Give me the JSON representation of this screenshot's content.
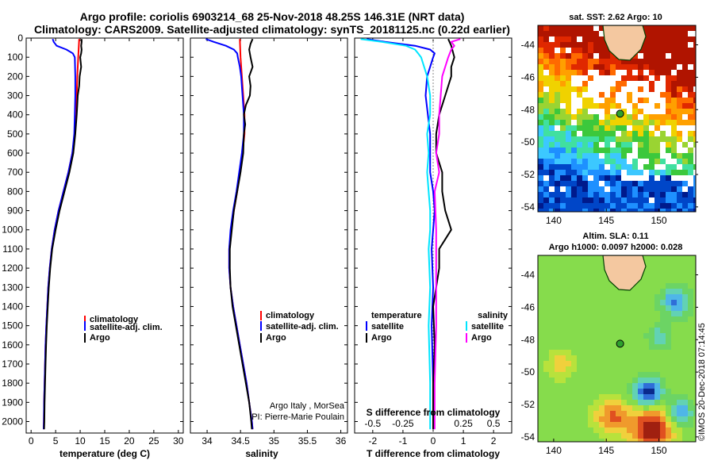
{
  "title": {
    "line1": "Argo profile: coriolis 6903214_68 25-Nov-2018 48.25S 146.31E (NRT data)",
    "line2": "Climatology: CARS2009. Satellite-adjusted climatology: synTS_20181125.nc (0.22d earlier)"
  },
  "colors": {
    "argo": "#000000",
    "climatology": "#ff0000",
    "satellite": "#0000ff",
    "temperature_sat": "#0000ff",
    "salinity_sat": "#00e5ff",
    "salinity_argo": "#ff00ff"
  },
  "chart_data": [
    {
      "id": "temperature",
      "type": "line",
      "xlabel": "temperature (deg C)",
      "ylabel": "",
      "xlim": [
        -1,
        31
      ],
      "ylim": [
        2060,
        0
      ],
      "y_reversed": true,
      "xticks": [
        0,
        5,
        10,
        15,
        20,
        25,
        30
      ],
      "yticks": [
        0,
        100,
        200,
        300,
        400,
        500,
        600,
        700,
        800,
        900,
        1000,
        1100,
        1200,
        1300,
        1400,
        1500,
        1600,
        1700,
        1800,
        1900,
        2000
      ],
      "legend": [
        "climatology",
        "satellite-adj. clim.",
        "Argo"
      ],
      "series": [
        {
          "name": "climatology",
          "color": "red",
          "y": [
            5,
            100,
            200,
            300,
            400,
            500,
            600,
            700,
            800,
            900,
            1000,
            1100,
            1200,
            1300,
            1400,
            1500,
            1600,
            1700,
            1800,
            1900,
            2000,
            2040
          ],
          "x": [
            9.8,
            9.6,
            9.4,
            9.3,
            9.2,
            8.9,
            8.4,
            7.6,
            6.6,
            5.6,
            4.8,
            4.2,
            3.8,
            3.5,
            3.3,
            3.1,
            2.95,
            2.85,
            2.75,
            2.65,
            2.6,
            2.55
          ]
        },
        {
          "name": "satellite-adj. clim.",
          "color": "blue",
          "y": [
            5,
            20,
            40,
            60,
            80,
            100,
            200,
            300,
            400,
            500,
            600,
            700,
            800,
            900,
            1000,
            1100,
            1200,
            1300,
            1400,
            1500,
            1600,
            1700,
            1800,
            1900,
            2000,
            2040
          ],
          "x": [
            4.4,
            4.6,
            5.2,
            7.2,
            8.5,
            8.9,
            9.0,
            9.0,
            8.9,
            8.8,
            8.4,
            7.6,
            6.6,
            5.6,
            4.8,
            4.2,
            3.8,
            3.5,
            3.3,
            3.1,
            2.95,
            2.85,
            2.75,
            2.65,
            2.6,
            2.55
          ]
        },
        {
          "name": "Argo",
          "color": "black",
          "y": [
            5,
            20,
            40,
            60,
            80,
            100,
            150,
            200,
            250,
            300,
            350,
            400,
            500,
            600,
            700,
            800,
            900,
            1000,
            1100,
            1200,
            1300,
            1400,
            1500,
            1600,
            1700,
            1800,
            1900,
            2000,
            2040
          ],
          "x": [
            10.3,
            10.3,
            10.2,
            10.3,
            10.2,
            10.0,
            10.2,
            9.9,
            9.8,
            9.5,
            9.4,
            9.3,
            9.0,
            8.6,
            7.8,
            6.8,
            5.8,
            5.0,
            4.3,
            3.9,
            3.6,
            3.4,
            3.2,
            3.05,
            2.95,
            2.85,
            2.75,
            2.7,
            2.65
          ]
        }
      ]
    },
    {
      "id": "salinity",
      "type": "line",
      "xlabel": "salinity",
      "ylabel": "",
      "xlim": [
        33.75,
        36.1
      ],
      "ylim": [
        2060,
        0
      ],
      "y_reversed": true,
      "xticks": [
        34,
        34.5,
        35,
        35.5,
        36
      ],
      "xticklabels": [
        "34",
        "34.5",
        "35",
        "35.5",
        "36"
      ],
      "legend": [
        "climatology",
        "satellite-adj. clim.",
        "Argo"
      ],
      "notes": [
        "Argo Italy , MorSea",
        "PI: Pierre-Marie Poulain"
      ],
      "series": [
        {
          "name": "climatology",
          "color": "red",
          "y": [
            5,
            100,
            200,
            300,
            400,
            500,
            600,
            700,
            800,
            900,
            1000,
            1100,
            1200,
            1300,
            1400,
            1500,
            1600,
            1700,
            1800,
            1900,
            2000,
            2040
          ],
          "x": [
            34.49,
            34.5,
            34.52,
            34.54,
            34.56,
            34.56,
            34.53,
            34.49,
            34.45,
            34.4,
            34.36,
            34.33,
            34.33,
            34.35,
            34.39,
            34.44,
            34.49,
            34.54,
            34.59,
            34.63,
            34.67,
            34.68
          ]
        },
        {
          "name": "satellite-adj. clim.",
          "color": "blue",
          "y": [
            5,
            20,
            40,
            60,
            80,
            100,
            150,
            200,
            300,
            400,
            500,
            600,
            700,
            800,
            900,
            1000,
            1100,
            1200,
            1300,
            1400,
            1500,
            1600,
            1700,
            1800,
            1900,
            2000,
            2040
          ],
          "x": [
            33.98,
            34.1,
            34.28,
            34.4,
            34.45,
            34.46,
            34.49,
            34.51,
            34.53,
            34.55,
            34.55,
            34.52,
            34.48,
            34.44,
            34.39,
            34.35,
            34.33,
            34.33,
            34.35,
            34.39,
            34.44,
            34.49,
            34.54,
            34.59,
            34.63,
            34.67,
            34.68
          ]
        },
        {
          "name": "Argo",
          "color": "black",
          "y": [
            5,
            30,
            60,
            100,
            150,
            200,
            250,
            300,
            350,
            400,
            450,
            500,
            600,
            700,
            800,
            900,
            1000,
            1100,
            1200,
            1300,
            1400,
            1500,
            1600,
            1700,
            1800,
            1900,
            2000,
            2040
          ],
          "x": [
            34.68,
            34.65,
            34.63,
            34.65,
            34.68,
            34.63,
            34.65,
            34.64,
            34.58,
            34.55,
            34.57,
            34.55,
            34.54,
            34.5,
            34.45,
            34.4,
            34.37,
            34.34,
            34.34,
            34.35,
            34.38,
            34.43,
            34.48,
            34.53,
            34.58,
            34.63,
            34.66,
            34.67
          ]
        }
      ]
    },
    {
      "id": "difference",
      "type": "line",
      "xlabel": "T difference from climatology",
      "top_xlabel": "S difference from climatology",
      "xlim": [
        -2.6,
        2.6
      ],
      "ylim": [
        2060,
        0
      ],
      "y_reversed": true,
      "xticks": [
        -2,
        -1,
        0,
        1,
        2
      ],
      "top_xticks": [
        -2.0,
        -1.0,
        1.0,
        2.0
      ],
      "top_xticklabels": [
        "-0.5",
        "-0.25",
        "0.25",
        "0.5"
      ],
      "legend_temperature": {
        "heading": "temperature",
        "items": [
          "satellite",
          "Argo"
        ]
      },
      "legend_salinity": {
        "heading": "salinity",
        "items": [
          "satellite",
          "Argo"
        ]
      },
      "series": [
        {
          "name": "temperature satellite",
          "color": "blue",
          "y": [
            5,
            20,
            40,
            60,
            80,
            100,
            200,
            300,
            500,
            700,
            800,
            900,
            1000,
            1100,
            1300,
            1500,
            1800,
            2040
          ],
          "x": [
            -2.2,
            -1.6,
            -0.6,
            -0.1,
            0.05,
            0.0,
            -0.2,
            -0.25,
            -0.1,
            -0.1,
            0.0,
            0.05,
            0.0,
            -0.05,
            0.0,
            -0.05,
            0.0,
            0.0
          ]
        },
        {
          "name": "temperature Argo",
          "color": "black",
          "y": [
            5,
            40,
            100,
            150,
            200,
            300,
            400,
            500,
            600,
            700,
            800,
            900,
            1000,
            1050,
            1100,
            1200,
            1400,
            1600,
            1800,
            2040
          ],
          "x": [
            0.5,
            0.6,
            0.7,
            0.6,
            0.6,
            0.4,
            0.2,
            0.1,
            0.1,
            0.3,
            0.3,
            0.4,
            0.6,
            0.4,
            0.2,
            0.2,
            0.0,
            0.05,
            0.0,
            0.0
          ]
        },
        {
          "name": "salinity satellite",
          "color": "cyan",
          "y": [
            5,
            20,
            40,
            60,
            80,
            100,
            200,
            300,
            400,
            500,
            600,
            700,
            800,
            900,
            1000,
            1100,
            1300,
            1500,
            1800,
            2040
          ],
          "x": [
            -2.4,
            -1.7,
            -0.9,
            -0.6,
            -0.5,
            -0.4,
            -0.2,
            -0.1,
            -0.1,
            -0.2,
            -0.15,
            -0.2,
            -0.15,
            -0.1,
            -0.1,
            -0.15,
            -0.1,
            -0.15,
            -0.1,
            -0.1
          ]
        },
        {
          "name": "salinity Argo",
          "color": "magenta",
          "y": [
            5,
            20,
            40,
            60,
            100,
            200,
            400,
            500,
            600,
            700,
            800,
            1000,
            1200,
            1500,
            1800,
            2040
          ],
          "x": [
            0.9,
            0.6,
            0.7,
            0.6,
            0.5,
            0.3,
            0.2,
            0.2,
            0.1,
            0.2,
            0.05,
            0.1,
            0.1,
            0.1,
            0.05,
            0.05
          ]
        }
      ]
    }
  ],
  "maps": [
    {
      "id": "sst-map",
      "title": "sat. SST: 2.62 Argo: 10",
      "xticks": [
        140,
        145,
        150
      ],
      "yticks": [
        -44,
        -46,
        -48,
        -50,
        -52,
        -54
      ],
      "xlim": [
        138.5,
        153.5
      ],
      "ylim": [
        -54.3,
        -42.8
      ]
    },
    {
      "id": "sla-map",
      "title_line1": "Altim. SLA: 0.11",
      "title_line2": "Argo h1000: 0.0097 h2000: 0.028",
      "xticks": [
        140,
        145,
        150
      ],
      "yticks": [
        -44,
        -46,
        -48,
        -50,
        -52,
        -54
      ],
      "xlim": [
        138.5,
        153.5
      ],
      "ylim": [
        -54.3,
        -42.8
      ]
    }
  ],
  "argo_position": {
    "lon": 146.31,
    "lat": -48.25
  },
  "footer": "©IMOS 20-Dec-2018 07:14:45"
}
